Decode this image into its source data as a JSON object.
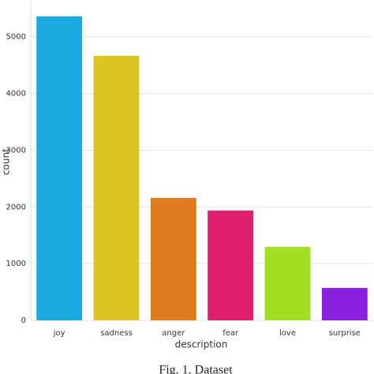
{
  "chart_data": {
    "type": "bar",
    "categories": [
      "joy",
      "sadness",
      "anger",
      "fear",
      "love",
      "surprise"
    ],
    "values": [
      5362,
      4666,
      2159,
      1937,
      1295,
      571
    ],
    "colors": [
      "#1ba9e0",
      "#dcc520",
      "#e07b20",
      "#e0206e",
      "#a0e020",
      "#8a20e0"
    ],
    "ylim": [
      0,
      5650
    ],
    "yticks": [
      0,
      1000,
      2000,
      3000,
      4000,
      5000
    ],
    "grid": true,
    "xlabel": "description",
    "ylabel": "count",
    "caption": "Fig. 1. Dataset"
  }
}
